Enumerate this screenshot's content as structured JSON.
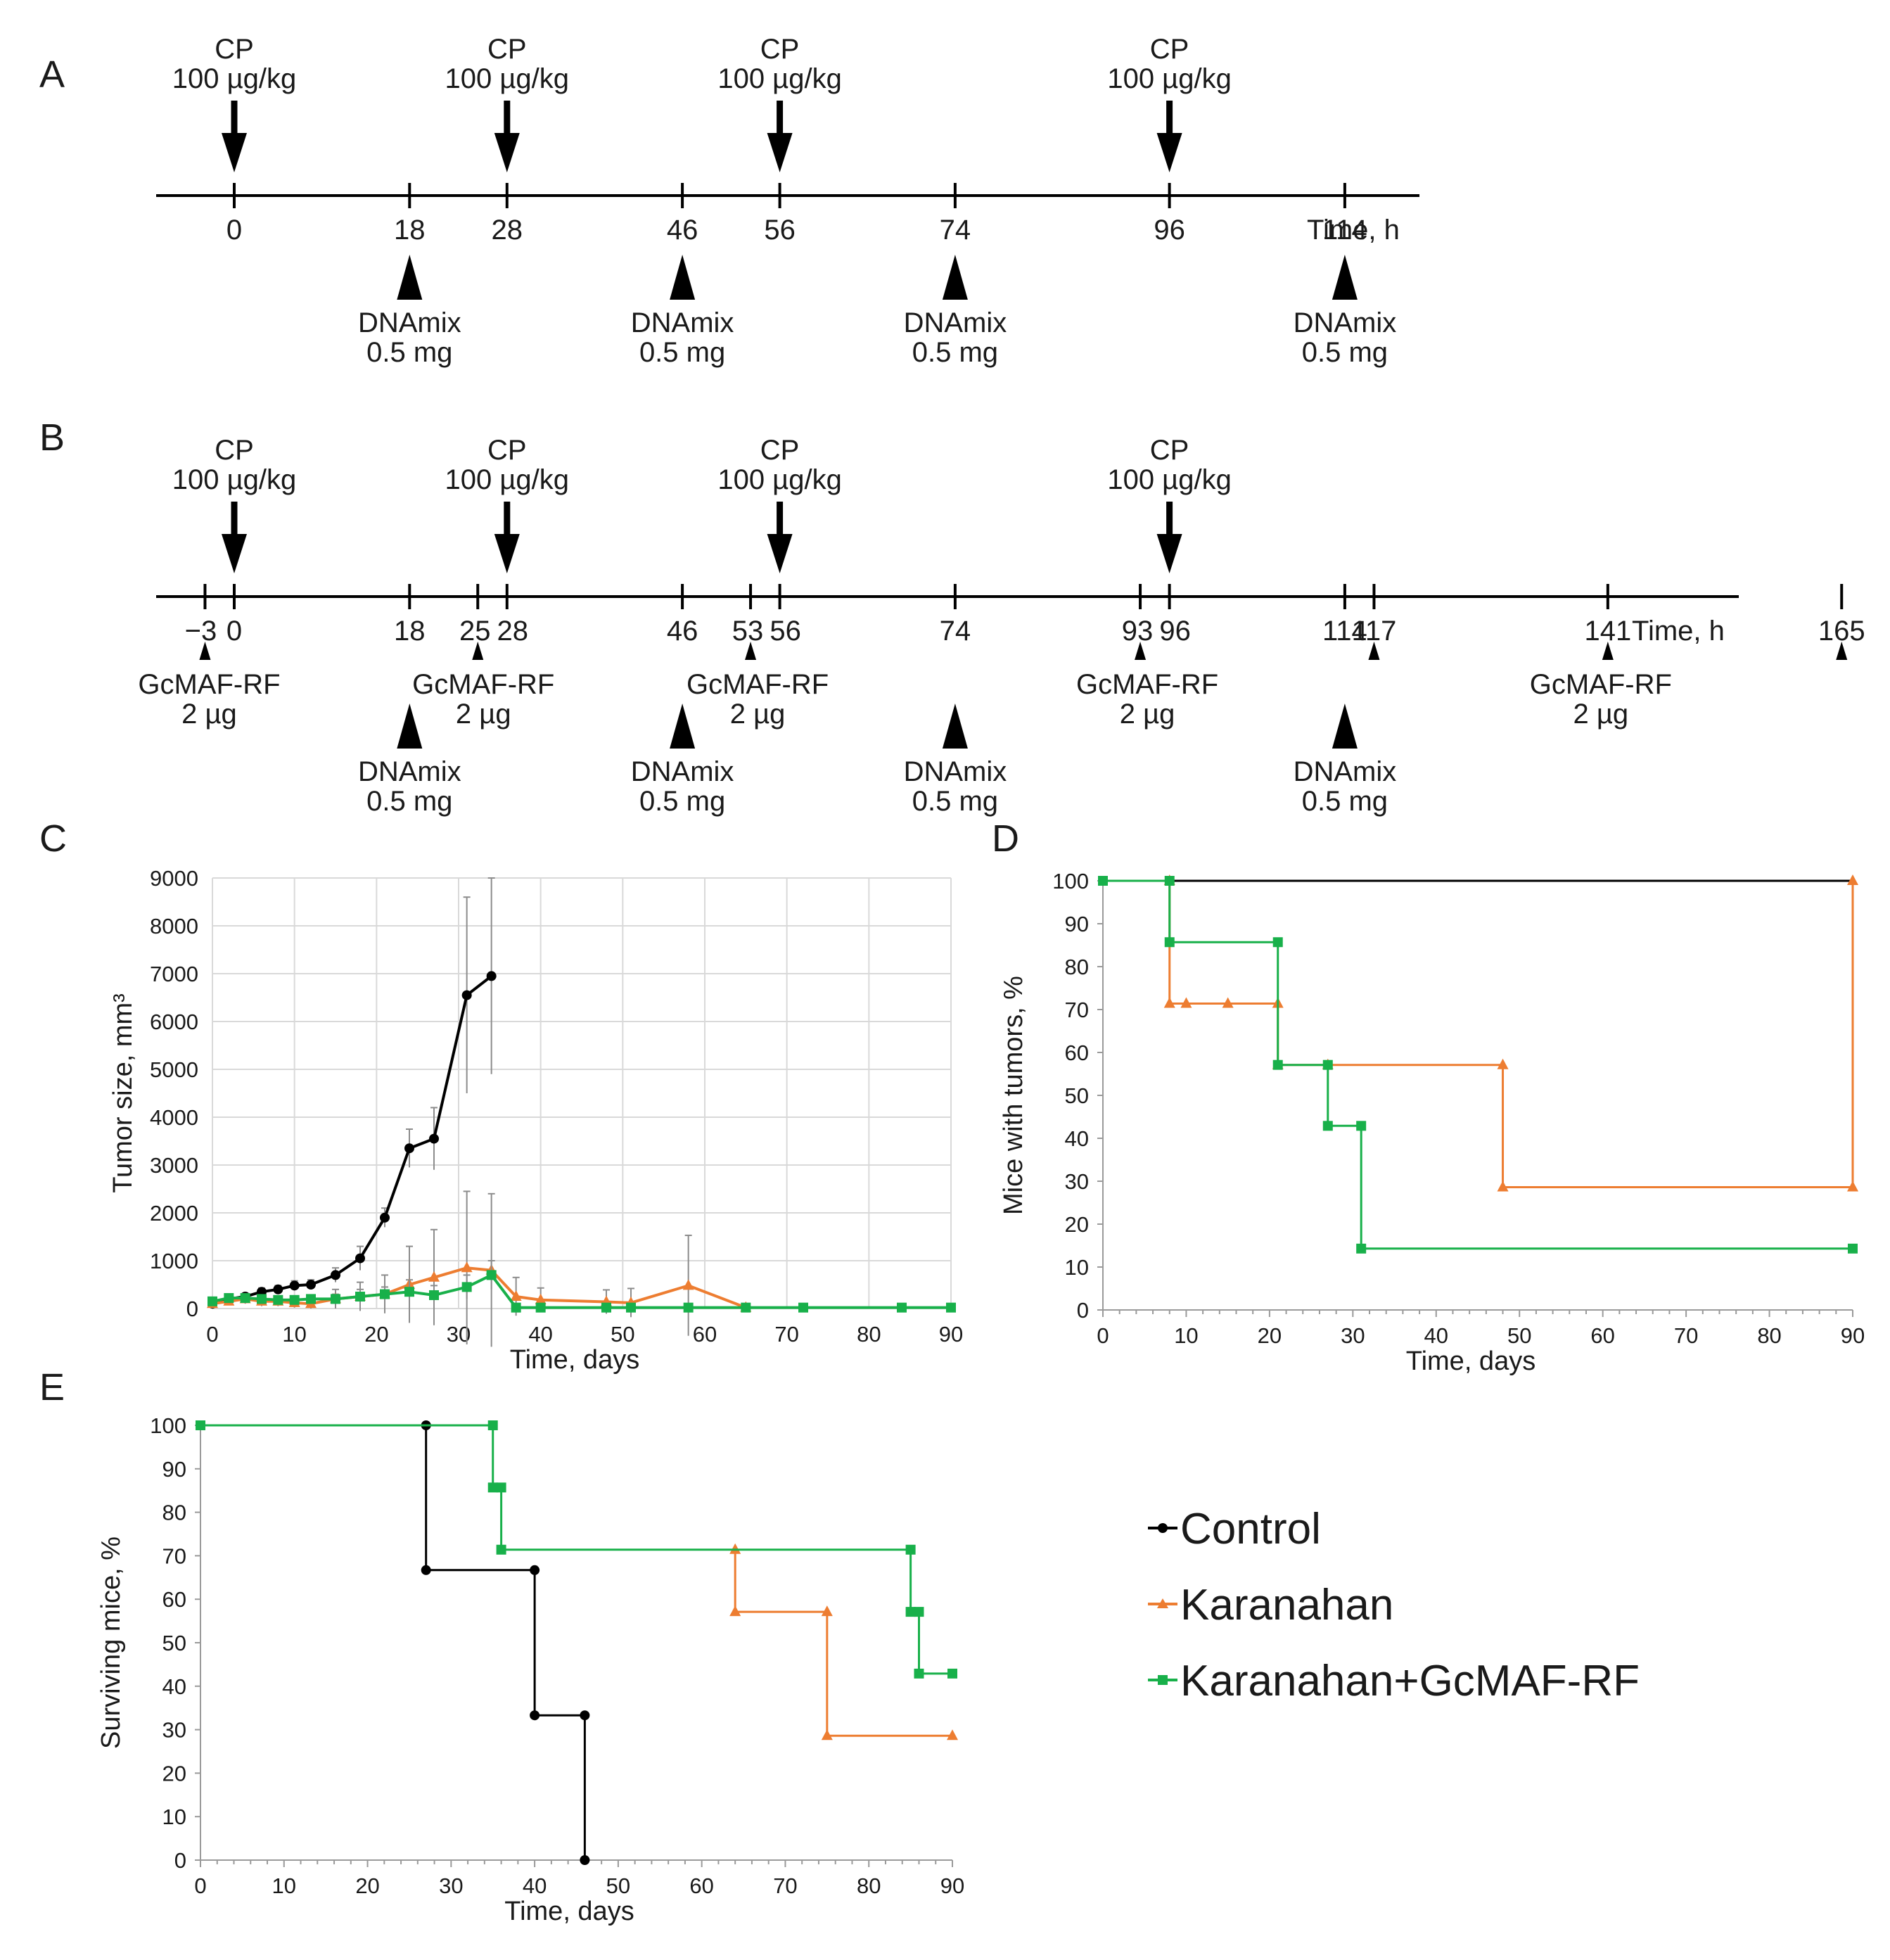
{
  "colors": {
    "Control": "#000000",
    "Karanahan": "#ed7d31",
    "Karanahan+GcMAF-RF": "#18b04a",
    "grid": "#d9d9d9",
    "errorbar": "#8c8c8c"
  },
  "panels": {
    "A": "A",
    "B": "B",
    "C": "C",
    "D": "D",
    "E": "E"
  },
  "timeline_A": {
    "axis_label": "Time, h",
    "ticks": [
      0,
      18,
      28,
      46,
      56,
      74,
      96,
      114
    ],
    "cp_times": [
      0,
      28,
      56,
      96
    ],
    "cp_label": [
      "CP",
      "100 µg/kg"
    ],
    "dnamix_times": [
      18,
      46,
      74,
      114
    ],
    "dnamix_label": [
      "DNAmix",
      "0.5 mg"
    ]
  },
  "timeline_B": {
    "axis_label": "Time, h",
    "ticks": [
      -3,
      0,
      18,
      25,
      28,
      46,
      53,
      56,
      74,
      93,
      96,
      114,
      117,
      141,
      165
    ],
    "tick_labels": [
      "−3",
      "0",
      "18",
      "25",
      "28",
      "46",
      "53",
      "56",
      "74",
      "93",
      "96",
      "114",
      "117",
      "141",
      "165"
    ],
    "cp_times": [
      0,
      28,
      56,
      96
    ],
    "cp_label": [
      "CP",
      "100 µg/kg"
    ],
    "dnamix_times": [
      18,
      46,
      74,
      114
    ],
    "dnamix_label": [
      "DNAmix",
      "0.5 mg"
    ],
    "gcmaf_times": [
      -3,
      25,
      53,
      93,
      117,
      141,
      165
    ],
    "gcmaf_labeled_times": [
      -3,
      25,
      53,
      93,
      141
    ],
    "gcmaf_label": [
      "GcMAF-RF",
      "2 µg"
    ]
  },
  "chart_data": [
    {
      "panel": "C",
      "type": "line",
      "xlabel": "Time, days",
      "ylabel": "Tumor size, mm³",
      "xlim": [
        0,
        90
      ],
      "ylim": [
        0,
        9000
      ],
      "xticks": [
        0,
        10,
        20,
        30,
        40,
        50,
        60,
        70,
        80,
        90
      ],
      "yticks": [
        0,
        1000,
        2000,
        3000,
        4000,
        5000,
        6000,
        7000,
        8000,
        9000
      ],
      "grid": "horizontal",
      "series": [
        {
          "name": "Control",
          "x": [
            0,
            2,
            4,
            6,
            8,
            10,
            12,
            15,
            18,
            21,
            24,
            27,
            31,
            34
          ],
          "y": [
            100,
            200,
            250,
            350,
            400,
            480,
            500,
            700,
            1050,
            1900,
            3350,
            3550,
            6550,
            6950
          ],
          "err": [
            30,
            50,
            60,
            80,
            80,
            100,
            100,
            150,
            250,
            200,
            400,
            650,
            2050,
            2050
          ]
        },
        {
          "name": "Karanahan",
          "x": [
            0,
            2,
            4,
            6,
            8,
            10,
            12,
            15,
            18,
            21,
            24,
            27,
            31,
            34,
            37,
            40,
            48,
            51,
            58,
            65
          ],
          "y": [
            100,
            150,
            200,
            150,
            150,
            120,
            100,
            200,
            250,
            300,
            500,
            650,
            850,
            800,
            250,
            180,
            140,
            120,
            480,
            20
          ],
          "err": [
            20,
            50,
            100,
            100,
            100,
            100,
            100,
            200,
            300,
            400,
            800,
            1000,
            1600,
            1600,
            400,
            250,
            250,
            300,
            1050,
            20
          ]
        },
        {
          "name": "Karanahan+GcMAF-RF",
          "x": [
            0,
            2,
            4,
            6,
            8,
            10,
            12,
            15,
            18,
            21,
            24,
            27,
            31,
            34,
            37,
            40,
            48,
            51,
            58,
            65,
            72,
            84,
            90
          ],
          "y": [
            150,
            220,
            220,
            200,
            180,
            180,
            200,
            200,
            250,
            300,
            350,
            280,
            450,
            700,
            20,
            20,
            20,
            20,
            20,
            20,
            20,
            20,
            20
          ],
          "err": [
            30,
            50,
            80,
            80,
            80,
            80,
            80,
            100,
            150,
            150,
            250,
            200,
            250,
            300,
            0,
            0,
            0,
            0,
            0,
            0,
            0,
            0,
            0
          ]
        }
      ]
    },
    {
      "panel": "D",
      "type": "line",
      "step": true,
      "xlabel": "Time, days",
      "ylabel": "Mice with tumors, %",
      "xlim": [
        0,
        90
      ],
      "ylim": [
        0,
        100
      ],
      "xticks": [
        0,
        10,
        20,
        30,
        40,
        50,
        60,
        70,
        80,
        90
      ],
      "yticks": [
        0,
        10,
        20,
        30,
        40,
        50,
        60,
        70,
        80,
        90,
        100
      ],
      "grid": "none",
      "series": [
        {
          "name": "Control",
          "x": [
            0,
            90
          ],
          "y": [
            100,
            100
          ]
        },
        {
          "name": "Karanahan",
          "x": [
            8,
            8,
            10,
            15,
            21,
            21,
            27,
            48,
            48,
            90,
            90
          ],
          "y": [
            100,
            71.4,
            71.4,
            71.4,
            71.4,
            57.1,
            57.1,
            57.1,
            28.6,
            28.6,
            100
          ]
        },
        {
          "name": "Karanahan+GcMAF-RF",
          "x": [
            0,
            8,
            8,
            21,
            21,
            27,
            27,
            31,
            31,
            90
          ],
          "y": [
            100,
            100,
            85.7,
            85.7,
            57.1,
            57.1,
            42.9,
            42.9,
            14.3,
            14.3
          ]
        }
      ]
    },
    {
      "panel": "E",
      "type": "line",
      "step": true,
      "xlabel": "Time, days",
      "ylabel": "Surviving mice, %",
      "xlim": [
        0,
        90
      ],
      "ylim": [
        0,
        100
      ],
      "xticks": [
        0,
        10,
        20,
        30,
        40,
        50,
        60,
        70,
        80,
        90
      ],
      "yticks": [
        0,
        10,
        20,
        30,
        40,
        50,
        60,
        70,
        80,
        90,
        100
      ],
      "grid": "none",
      "series": [
        {
          "name": "Control",
          "x": [
            27,
            27,
            40,
            40,
            46,
            46
          ],
          "y": [
            100,
            66.7,
            66.7,
            33.3,
            33.3,
            0
          ]
        },
        {
          "name": "Karanahan",
          "x": [
            64,
            64,
            75,
            75,
            90
          ],
          "y": [
            71.4,
            57.1,
            57.1,
            28.6,
            28.6
          ]
        },
        {
          "name": "Karanahan+GcMAF-RF",
          "x": [
            0,
            35,
            35,
            36,
            36,
            85,
            85,
            86,
            86,
            90
          ],
          "y": [
            100,
            100,
            85.7,
            85.7,
            71.4,
            71.4,
            57.1,
            57.1,
            42.9,
            42.9
          ]
        }
      ]
    }
  ],
  "legend": [
    "Control",
    "Karanahan",
    "Karanahan+GcMAF-RF"
  ]
}
